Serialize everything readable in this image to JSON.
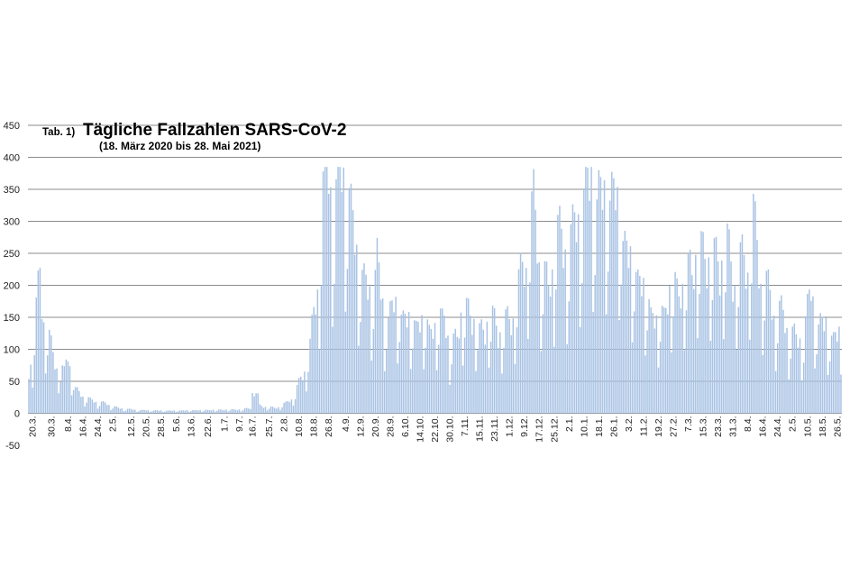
{
  "chart_data": {
    "type": "bar",
    "title_prefix": "Tab. 1)",
    "title": "Tägliche Fallzahlen SARS-CoV-2",
    "subtitle": "(18. März 2020 bis 28. Mai 2021)",
    "xlabel": "",
    "ylabel": "",
    "ylim": [
      -50,
      450
    ],
    "y_ticks": [
      450,
      400,
      350,
      300,
      250,
      200,
      150,
      100,
      50,
      0,
      -50
    ],
    "grid": true,
    "legend": "none",
    "bar_color": "#a9c3e4",
    "start_date": "2020-03-18",
    "end_date": "2021-05-28",
    "x_tick_labels": [
      "20.3.",
      "30.3.",
      "8.4.",
      "16.4.",
      "24.4.",
      "2.5.",
      "12.5.",
      "20.5.",
      "28.5.",
      "5.6.",
      "13.6.",
      "22.6.",
      "1.7.",
      "9.7.",
      "16.7.",
      "25.7.",
      "2.8.",
      "10.8.",
      "18.8.",
      "26.8.",
      "4.9.",
      "12.9.",
      "20.9.",
      "28.9.",
      "6.10.",
      "14.10.",
      "22.10.",
      "30.10.",
      "7.11.",
      "15.11.",
      "23.11.",
      "1.12.",
      "9.12.",
      "17.12.",
      "25.12.",
      "2.1.",
      "10.1.",
      "18.1.",
      "26.1.",
      "3.2.",
      "11.2.",
      "19.2.",
      "27.2.",
      "7.3.",
      "15.3.",
      "23.3.",
      "31.3.",
      "8.4.",
      "16.4.",
      "24.4.",
      "2.5.",
      "10.5.",
      "18.5.",
      "26.5."
    ],
    "series_anchors": {
      "x": [
        "2020-03-18",
        "2020-03-20",
        "2020-03-24",
        "2020-03-26",
        "2020-03-28",
        "2020-03-31",
        "2020-04-03",
        "2020-04-06",
        "2020-04-08",
        "2020-04-12",
        "2020-04-20",
        "2020-04-28",
        "2020-05-05",
        "2020-05-15",
        "2020-06-01",
        "2020-06-20",
        "2020-07-10",
        "2020-07-15",
        "2020-07-17",
        "2020-07-20",
        "2020-07-28",
        "2020-08-03",
        "2020-08-08",
        "2020-08-12",
        "2020-08-16",
        "2020-08-20",
        "2020-08-23",
        "2020-08-26",
        "2020-08-29",
        "2020-09-01",
        "2020-09-04",
        "2020-09-07",
        "2020-09-10",
        "2020-09-14",
        "2020-09-18",
        "2020-09-21",
        "2020-09-25",
        "2020-09-30",
        "2020-10-05",
        "2020-10-10",
        "2020-10-16",
        "2020-10-22",
        "2020-10-27",
        "2020-10-30",
        "2020-11-05",
        "2020-11-10",
        "2020-11-15",
        "2020-11-20",
        "2020-11-25",
        "2020-12-01",
        "2020-12-06",
        "2020-12-10",
        "2020-12-14",
        "2020-12-18",
        "2020-12-22",
        "2020-12-26",
        "2020-12-30",
        "2021-01-04",
        "2021-01-08",
        "2021-01-11",
        "2021-01-14",
        "2021-01-17",
        "2021-01-20",
        "2021-01-24",
        "2021-01-27",
        "2021-02-01",
        "2021-02-05",
        "2021-02-10",
        "2021-02-14",
        "2021-02-18",
        "2021-02-22",
        "2021-02-27",
        "2021-03-04",
        "2021-03-08",
        "2021-03-12",
        "2021-03-16",
        "2021-03-20",
        "2021-03-24",
        "2021-03-28",
        "2021-04-01",
        "2021-04-05",
        "2021-04-08",
        "2021-04-11",
        "2021-04-14",
        "2021-04-18",
        "2021-04-22",
        "2021-04-26",
        "2021-04-30",
        "2021-05-04",
        "2021-05-08",
        "2021-05-12",
        "2021-05-16",
        "2021-05-20",
        "2021-05-24",
        "2021-05-28"
      ],
      "y": [
        70,
        85,
        220,
        150,
        120,
        90,
        70,
        60,
        95,
        35,
        20,
        15,
        8,
        5,
        4,
        5,
        6,
        8,
        55,
        12,
        8,
        15,
        30,
        60,
        100,
        200,
        330,
        380,
        300,
        380,
        370,
        300,
        250,
        200,
        180,
        240,
        140,
        170,
        150,
        140,
        140,
        130,
        160,
        90,
        150,
        160,
        120,
        150,
        130,
        140,
        190,
        250,
        310,
        230,
        180,
        280,
        250,
        270,
        310,
        330,
        370,
        320,
        340,
        330,
        340,
        260,
        230,
        200,
        170,
        140,
        160,
        200,
        190,
        230,
        240,
        250,
        230,
        240,
        250,
        210,
        230,
        240,
        290,
        230,
        190,
        160,
        150,
        130,
        110,
        120,
        190,
        130,
        140,
        110,
        130
      ]
    }
  }
}
